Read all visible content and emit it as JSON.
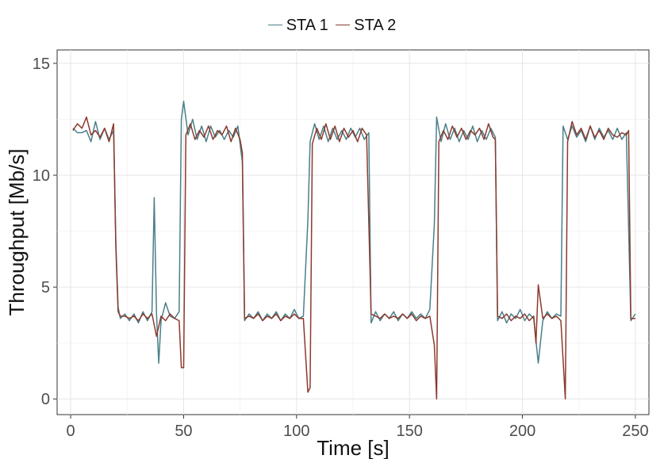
{
  "chart_data": {
    "type": "line",
    "title": "",
    "xlabel": "Time [s]",
    "ylabel": "Throughput [Mb/s]",
    "xlim": [
      -6,
      256
    ],
    "ylim": [
      -0.7,
      15.6
    ],
    "xticks": [
      0,
      50,
      100,
      150,
      200,
      250
    ],
    "yticks": [
      0,
      5,
      10,
      15
    ],
    "grid": true,
    "legend_position": "top",
    "series": [
      {
        "name": "STA 1",
        "color": "#4a8088",
        "points": [
          [
            1,
            12.1
          ],
          [
            3,
            11.9
          ],
          [
            5,
            11.9
          ],
          [
            7,
            12.0
          ],
          [
            9,
            11.5
          ],
          [
            11,
            12.4
          ],
          [
            13,
            11.6
          ],
          [
            15,
            12.1
          ],
          [
            17,
            11.6
          ],
          [
            19,
            12.0
          ],
          [
            20,
            7.0
          ],
          [
            21,
            4.1
          ],
          [
            22,
            3.6
          ],
          [
            24,
            3.8
          ],
          [
            26,
            3.5
          ],
          [
            28,
            3.8
          ],
          [
            30,
            3.4
          ],
          [
            32,
            3.9
          ],
          [
            34,
            3.5
          ],
          [
            36,
            3.9
          ],
          [
            37,
            9.0
          ],
          [
            38,
            3.8
          ],
          [
            39,
            1.6
          ],
          [
            40,
            3.5
          ],
          [
            42,
            4.3
          ],
          [
            44,
            3.7
          ],
          [
            46,
            3.6
          ],
          [
            48,
            3.9
          ],
          [
            49,
            12.5
          ],
          [
            50,
            13.3
          ],
          [
            52,
            11.8
          ],
          [
            54,
            12.5
          ],
          [
            56,
            11.6
          ],
          [
            58,
            12.2
          ],
          [
            60,
            11.5
          ],
          [
            62,
            12.2
          ],
          [
            64,
            11.7
          ],
          [
            66,
            12.0
          ],
          [
            68,
            11.6
          ],
          [
            70,
            12.0
          ],
          [
            72,
            11.7
          ],
          [
            74,
            12.2
          ],
          [
            76,
            10.6
          ],
          [
            77,
            3.5
          ],
          [
            79,
            3.8
          ],
          [
            81,
            3.6
          ],
          [
            83,
            3.9
          ],
          [
            85,
            3.5
          ],
          [
            87,
            3.8
          ],
          [
            89,
            3.6
          ],
          [
            91,
            3.9
          ],
          [
            93,
            3.5
          ],
          [
            95,
            3.8
          ],
          [
            97,
            3.6
          ],
          [
            99,
            4.0
          ],
          [
            101,
            3.6
          ],
          [
            103,
            3.7
          ],
          [
            105,
            8.0
          ],
          [
            106,
            11.5
          ],
          [
            108,
            12.3
          ],
          [
            110,
            11.6
          ],
          [
            112,
            12.2
          ],
          [
            114,
            11.5
          ],
          [
            116,
            12.1
          ],
          [
            118,
            11.6
          ],
          [
            120,
            12.0
          ],
          [
            122,
            11.6
          ],
          [
            124,
            12.1
          ],
          [
            126,
            11.7
          ],
          [
            128,
            12.1
          ],
          [
            130,
            11.6
          ],
          [
            132,
            11.9
          ],
          [
            133,
            3.4
          ],
          [
            135,
            3.9
          ],
          [
            137,
            3.5
          ],
          [
            139,
            3.8
          ],
          [
            141,
            3.6
          ],
          [
            143,
            3.9
          ],
          [
            145,
            3.5
          ],
          [
            147,
            3.8
          ],
          [
            149,
            3.6
          ],
          [
            151,
            3.9
          ],
          [
            153,
            3.6
          ],
          [
            155,
            3.8
          ],
          [
            157,
            3.6
          ],
          [
            159,
            4.0
          ],
          [
            161,
            7.8
          ],
          [
            162,
            12.6
          ],
          [
            164,
            11.5
          ],
          [
            166,
            12.3
          ],
          [
            168,
            11.6
          ],
          [
            170,
            12.1
          ],
          [
            172,
            11.5
          ],
          [
            174,
            12.0
          ],
          [
            176,
            11.6
          ],
          [
            178,
            12.2
          ],
          [
            180,
            11.5
          ],
          [
            182,
            12.0
          ],
          [
            184,
            11.6
          ],
          [
            186,
            12.1
          ],
          [
            188,
            11.7
          ],
          [
            189,
            3.5
          ],
          [
            191,
            3.9
          ],
          [
            193,
            3.4
          ],
          [
            195,
            3.8
          ],
          [
            197,
            3.6
          ],
          [
            199,
            4.0
          ],
          [
            201,
            3.5
          ],
          [
            203,
            3.8
          ],
          [
            205,
            3.6
          ],
          [
            207,
            1.6
          ],
          [
            209,
            3.5
          ],
          [
            211,
            3.9
          ],
          [
            213,
            3.6
          ],
          [
            215,
            3.8
          ],
          [
            217,
            3.7
          ],
          [
            218,
            12.2
          ],
          [
            220,
            11.6
          ],
          [
            222,
            12.2
          ],
          [
            224,
            11.7
          ],
          [
            226,
            12.0
          ],
          [
            228,
            11.5
          ],
          [
            230,
            12.2
          ],
          [
            232,
            11.6
          ],
          [
            234,
            12.1
          ],
          [
            236,
            11.7
          ],
          [
            238,
            12.0
          ],
          [
            240,
            11.6
          ],
          [
            242,
            12.1
          ],
          [
            244,
            11.6
          ],
          [
            246,
            11.9
          ],
          [
            248,
            3.5
          ],
          [
            250,
            3.8
          ]
        ]
      },
      {
        "name": "STA 2",
        "color": "#8b3a2e",
        "points": [
          [
            1,
            12.0
          ],
          [
            3,
            12.3
          ],
          [
            5,
            12.1
          ],
          [
            7,
            12.6
          ],
          [
            9,
            11.8
          ],
          [
            11,
            12.0
          ],
          [
            13,
            11.7
          ],
          [
            15,
            12.1
          ],
          [
            17,
            11.5
          ],
          [
            19,
            12.3
          ],
          [
            20,
            6.8
          ],
          [
            21,
            3.9
          ],
          [
            22,
            3.7
          ],
          [
            24,
            3.7
          ],
          [
            26,
            3.6
          ],
          [
            28,
            3.7
          ],
          [
            30,
            3.5
          ],
          [
            32,
            3.8
          ],
          [
            34,
            3.6
          ],
          [
            36,
            3.8
          ],
          [
            38,
            2.8
          ],
          [
            40,
            3.7
          ],
          [
            42,
            3.5
          ],
          [
            44,
            3.8
          ],
          [
            46,
            3.6
          ],
          [
            48,
            3.5
          ],
          [
            49,
            1.4
          ],
          [
            50,
            1.4
          ],
          [
            51,
            11.8
          ],
          [
            53,
            12.3
          ],
          [
            55,
            11.6
          ],
          [
            57,
            12.0
          ],
          [
            59,
            11.7
          ],
          [
            61,
            12.2
          ],
          [
            63,
            11.6
          ],
          [
            65,
            12.0
          ],
          [
            67,
            11.8
          ],
          [
            69,
            12.2
          ],
          [
            71,
            11.5
          ],
          [
            73,
            12.1
          ],
          [
            75,
            11.6
          ],
          [
            76,
            11.0
          ],
          [
            77,
            3.6
          ],
          [
            79,
            3.7
          ],
          [
            81,
            3.6
          ],
          [
            83,
            3.8
          ],
          [
            85,
            3.5
          ],
          [
            87,
            3.7
          ],
          [
            89,
            3.6
          ],
          [
            91,
            3.8
          ],
          [
            93,
            3.5
          ],
          [
            95,
            3.7
          ],
          [
            97,
            3.6
          ],
          [
            99,
            3.8
          ],
          [
            101,
            3.6
          ],
          [
            103,
            3.6
          ],
          [
            105,
            0.3
          ],
          [
            106,
            0.5
          ],
          [
            107,
            11.4
          ],
          [
            109,
            12.1
          ],
          [
            111,
            11.6
          ],
          [
            113,
            12.3
          ],
          [
            115,
            11.6
          ],
          [
            117,
            12.2
          ],
          [
            119,
            11.5
          ],
          [
            121,
            12.1
          ],
          [
            123,
            11.7
          ],
          [
            125,
            12.0
          ],
          [
            127,
            11.5
          ],
          [
            129,
            12.1
          ],
          [
            131,
            11.8
          ],
          [
            133,
            3.8
          ],
          [
            135,
            3.7
          ],
          [
            137,
            3.6
          ],
          [
            139,
            3.8
          ],
          [
            141,
            3.6
          ],
          [
            143,
            3.7
          ],
          [
            145,
            3.6
          ],
          [
            147,
            3.8
          ],
          [
            149,
            3.6
          ],
          [
            151,
            3.8
          ],
          [
            153,
            3.5
          ],
          [
            155,
            3.7
          ],
          [
            157,
            3.6
          ],
          [
            159,
            3.7
          ],
          [
            161,
            2.4
          ],
          [
            162,
            0.0
          ],
          [
            163,
            11.5
          ],
          [
            165,
            12.0
          ],
          [
            167,
            11.6
          ],
          [
            169,
            12.2
          ],
          [
            171,
            11.7
          ],
          [
            173,
            12.1
          ],
          [
            175,
            11.6
          ],
          [
            177,
            12.0
          ],
          [
            179,
            11.8
          ],
          [
            181,
            12.1
          ],
          [
            183,
            11.6
          ],
          [
            185,
            12.3
          ],
          [
            187,
            11.7
          ],
          [
            188,
            11.6
          ],
          [
            189,
            3.7
          ],
          [
            191,
            3.6
          ],
          [
            193,
            3.8
          ],
          [
            195,
            3.5
          ],
          [
            197,
            3.7
          ],
          [
            199,
            3.6
          ],
          [
            201,
            3.8
          ],
          [
            203,
            3.5
          ],
          [
            205,
            3.7
          ],
          [
            206,
            2.5
          ],
          [
            207,
            5.1
          ],
          [
            209,
            3.6
          ],
          [
            211,
            3.8
          ],
          [
            213,
            3.6
          ],
          [
            215,
            3.7
          ],
          [
            217,
            3.5
          ],
          [
            219,
            0.0
          ],
          [
            220,
            11.5
          ],
          [
            222,
            12.4
          ],
          [
            224,
            11.8
          ],
          [
            226,
            12.1
          ],
          [
            228,
            11.6
          ],
          [
            230,
            12.2
          ],
          [
            232,
            11.7
          ],
          [
            234,
            12.0
          ],
          [
            236,
            11.6
          ],
          [
            238,
            12.1
          ],
          [
            240,
            11.8
          ],
          [
            242,
            11.7
          ],
          [
            244,
            11.9
          ],
          [
            246,
            11.8
          ],
          [
            247,
            12.0
          ],
          [
            248,
            3.6
          ],
          [
            250,
            3.6
          ]
        ]
      }
    ]
  }
}
